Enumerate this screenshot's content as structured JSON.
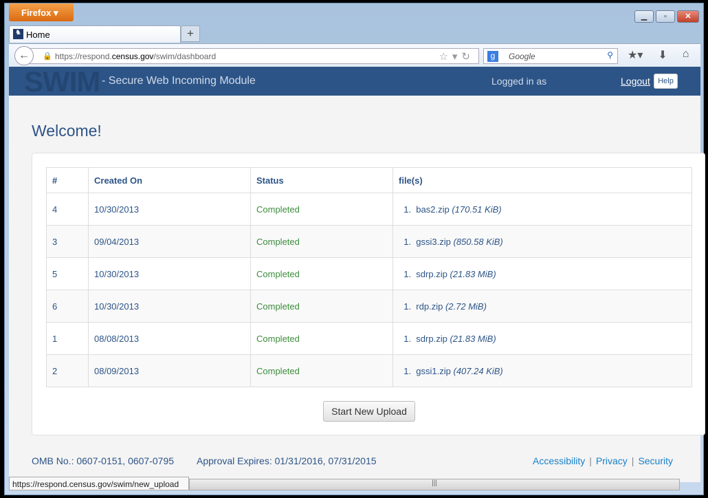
{
  "browser": {
    "menu_label": "Firefox",
    "tab_title": "Home",
    "new_tab": "+",
    "url_prefix": "https://respond.",
    "url_domain": "census.gov",
    "url_path": "/swim/dashboard",
    "search_placeholder": "Google",
    "status_url": "https://respond.census.gov/swim/new_upload"
  },
  "header": {
    "logo": "SWIM",
    "subtitle": "- Secure Web Incoming Module",
    "logged_in": "Logged in as",
    "logout": "Logout",
    "help": "Help"
  },
  "main": {
    "title": "Welcome!",
    "columns": [
      "#",
      "Created On",
      "Status",
      "file(s)"
    ],
    "rows": [
      {
        "id": "4",
        "date": "10/30/2013",
        "status": "Completed",
        "file": "bas2.zip",
        "size": "(170.51 KiB)"
      },
      {
        "id": "3",
        "date": "09/04/2013",
        "status": "Completed",
        "file": "gssi3.zip",
        "size": "(850.58 KiB)"
      },
      {
        "id": "5",
        "date": "10/30/2013",
        "status": "Completed",
        "file": "sdrp.zip",
        "size": "(21.83 MiB)"
      },
      {
        "id": "6",
        "date": "10/30/2013",
        "status": "Completed",
        "file": "rdp.zip",
        "size": "(2.72 MiB)"
      },
      {
        "id": "1",
        "date": "08/08/2013",
        "status": "Completed",
        "file": "sdrp.zip",
        "size": "(21.83 MiB)"
      },
      {
        "id": "2",
        "date": "08/09/2013",
        "status": "Completed",
        "file": "gssi1.zip",
        "size": "(407.24 KiB)"
      }
    ],
    "upload_button": "Start New Upload"
  },
  "footer": {
    "omb": "OMB No.: 0607-0151, 0607-0795",
    "approval": "Approval Expires: 01/31/2016, 07/31/2015",
    "links": [
      "Accessibility",
      "Privacy",
      "Security"
    ],
    "sep": "|"
  }
}
